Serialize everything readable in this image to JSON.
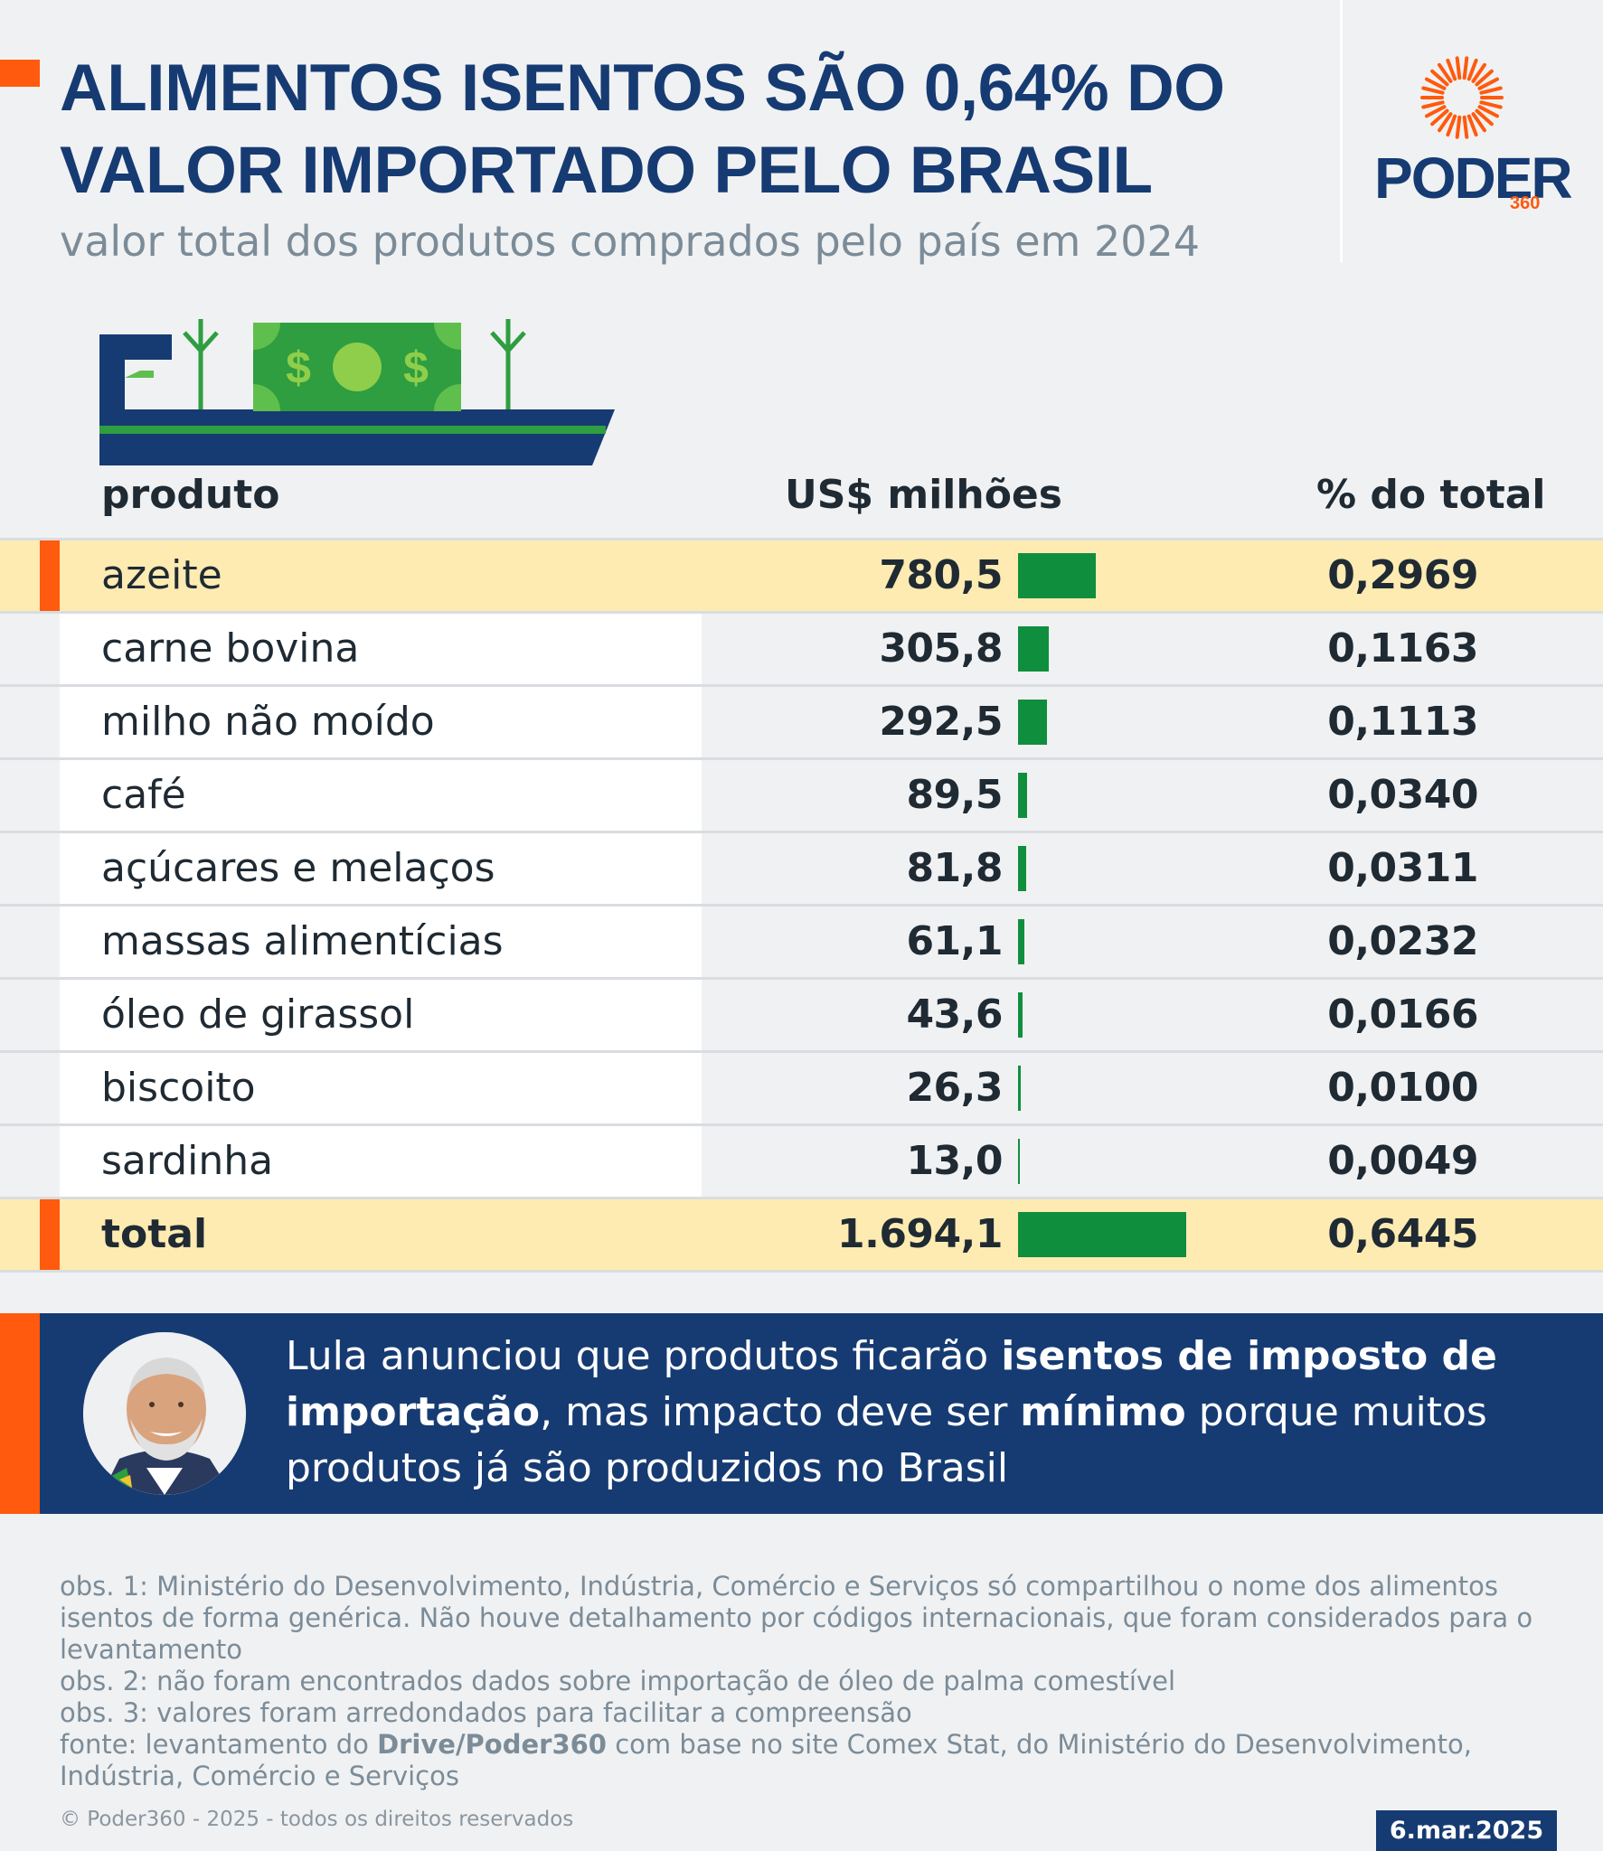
{
  "header": {
    "title_line1": "ALIMENTOS ISENTOS SÃO 0,64% DO",
    "title_line2": "VALOR IMPORTADO PELO BRASIL",
    "subtitle": "valor total dos produtos comprados pelo país em 2024"
  },
  "logo": {
    "word": "PODER",
    "number": "360"
  },
  "colors": {
    "navy": "#163b73",
    "orange": "#ff5a0d",
    "bar_green": "#0f8f3e",
    "highlight": "#fdebb2",
    "background": "#f0f1f3"
  },
  "chart_data": {
    "type": "table",
    "columns": [
      "produto",
      "US$ milhões",
      "% do total"
    ],
    "rows": [
      {
        "produto": "azeite",
        "value_label": "780,5",
        "value": 780.5,
        "pct": "0,2969",
        "highlight": true
      },
      {
        "produto": "carne bovina",
        "value_label": "305,8",
        "value": 305.8,
        "pct": "0,1163",
        "highlight": false
      },
      {
        "produto": "milho não moído",
        "value_label": "292,5",
        "value": 292.5,
        "pct": "0,1113",
        "highlight": false
      },
      {
        "produto": "café",
        "value_label": "89,5",
        "value": 89.5,
        "pct": "0,0340",
        "highlight": false
      },
      {
        "produto": "açúcares e melaços",
        "value_label": "81,8",
        "value": 81.8,
        "pct": "0,0311",
        "highlight": false
      },
      {
        "produto": "massas alimentícias",
        "value_label": "61,1",
        "value": 61.1,
        "pct": "0,0232",
        "highlight": false
      },
      {
        "produto": "óleo de girassol",
        "value_label": "43,6",
        "value": 43.6,
        "pct": "0,0166",
        "highlight": false
      },
      {
        "produto": "biscoito",
        "value_label": "26,3",
        "value": 26.3,
        "pct": "0,0100",
        "highlight": false
      },
      {
        "produto": "sardinha",
        "value_label": "13,0",
        "value": 13.0,
        "pct": "0,0049",
        "highlight": false
      },
      {
        "produto": "total",
        "value_label": "1.694,1",
        "value": 1694.1,
        "pct": "0,6445",
        "highlight": true,
        "total": true
      }
    ]
  },
  "quote": {
    "part1": "Lula anunciou que produtos ficarão ",
    "bold1": "isentos de imposto de importação",
    "part2": ", mas impacto deve ser ",
    "bold2": "mínimo",
    "part3": " porque muitos produtos já são produzidos no Brasil"
  },
  "notes": {
    "obs1": "obs. 1: Ministério do Desenvolvimento, Indústria, Comércio e Serviços só compartilhou o nome dos alimentos isentos de forma genérica. Não houve detalhamento por códigos internacionais, que foram considerados para o levantamento",
    "obs2": "obs. 2: não foram encontrados dados sobre importação de óleo de palma comestível",
    "obs3": "obs. 3: valores foram arredondados para facilitar a compreensão",
    "source_prefix": "fonte: levantamento do ",
    "source_bold": "Drive/Poder360",
    "source_suffix": " com base no site Comex Stat, do Ministério do Desenvolvimento, Indústria, Comércio e Serviços"
  },
  "footer": {
    "copyright": "© Poder360 - 2025 - todos os direitos reservados",
    "date": "6.mar.2025"
  }
}
